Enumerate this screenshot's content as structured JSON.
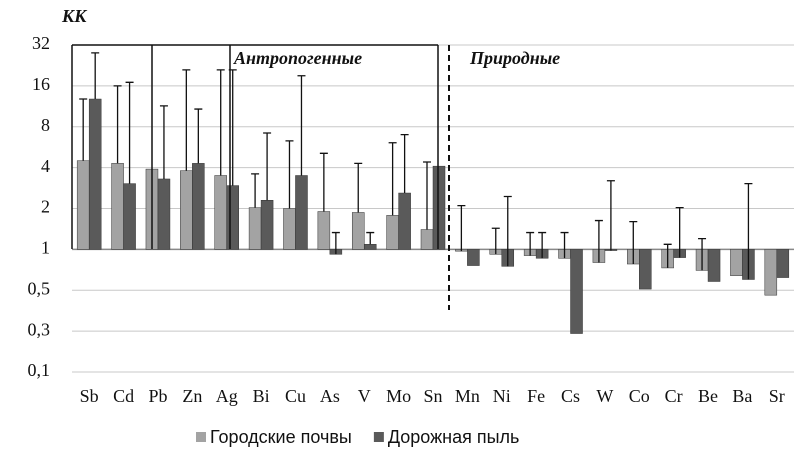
{
  "chart_data": {
    "type": "bar",
    "y_label": "КК",
    "annotations": [
      "Антропогенные",
      "Природные"
    ],
    "categories": [
      "Sb",
      "Cd",
      "Pb",
      "Zn",
      "Ag",
      "Bi",
      "Cu",
      "As",
      "V",
      "Mo",
      "Sn",
      "Mn",
      "Ni",
      "Fe",
      "Cs",
      "W",
      "Co",
      "Cr",
      "Be",
      "Ba",
      "Sr"
    ],
    "series": [
      {
        "name": "Городские почвы",
        "color": "#a3a3a3",
        "values": [
          4.5,
          4.3,
          3.9,
          3.8,
          3.5,
          2.03,
          2.0,
          1.9,
          1.87,
          1.78,
          1.4,
          0.97,
          0.92,
          0.9,
          0.86,
          0.8,
          0.78,
          0.73,
          0.7,
          0.64,
          0.46
        ],
        "error_top": [
          12.8,
          16,
          null,
          21,
          21,
          3.6,
          6.3,
          5.1,
          4.3,
          6.1,
          4.4,
          2.1,
          1.43,
          1.33,
          1.33,
          1.63,
          1.6,
          1.09,
          1.2,
          null,
          null
        ]
      },
      {
        "name": "Дорожная пыль",
        "color": "#5a5a5a",
        "values": [
          12.8,
          3.05,
          3.3,
          4.3,
          2.95,
          2.3,
          3.5,
          0.92,
          1.09,
          2.6,
          4.1,
          0.76,
          0.75,
          0.86,
          0.24,
          0.98,
          0.51,
          0.87,
          0.58,
          0.6,
          0.62
        ],
        "error_top": [
          28,
          17,
          11.4,
          10.8,
          21,
          7.2,
          19,
          1.33,
          1.33,
          7.0,
          null,
          null,
          2.45,
          1.33,
          null,
          3.2,
          null,
          2.03,
          null,
          3.05,
          null
        ]
      }
    ],
    "log_scale": true,
    "log_base": 2,
    "baseline": 1,
    "ylim": [
      0.125,
      32
    ],
    "yticks": [
      {
        "value": 0.125,
        "label": "0,1"
      },
      {
        "value": 0.25,
        "label": "0,3"
      },
      {
        "value": 0.5,
        "label": "0,5"
      },
      1,
      2,
      4,
      8,
      16,
      32
    ],
    "grid": true,
    "legend": "bottom"
  }
}
